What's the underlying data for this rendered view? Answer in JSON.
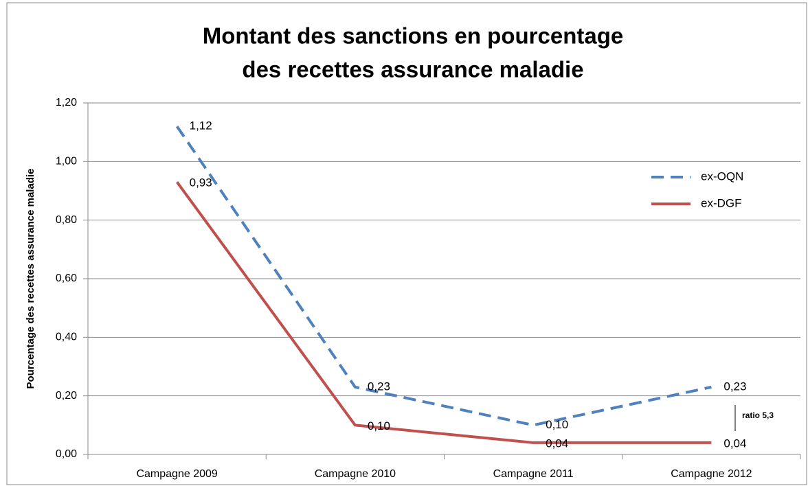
{
  "chart_data": {
    "type": "line",
    "title": [
      "Montant des sanctions en pourcentage",
      "des recettes assurance maladie"
    ],
    "y_label": "Pourcentage des recettes assurance maladie",
    "categories": [
      "Campagne 2009",
      "Campagne 2010",
      "Campagne 2011",
      "Campagne 2012"
    ],
    "series": [
      {
        "name": "ex-OQN",
        "color": "#4f81bd",
        "dashed": true,
        "values": [
          1.12,
          0.23,
          0.1,
          0.23
        ],
        "value_labels": [
          "1,12",
          "0,23",
          "0,10",
          "0,23"
        ]
      },
      {
        "name": "ex-DGF",
        "color": "#c0504d",
        "dashed": false,
        "values": [
          0.93,
          0.1,
          0.04,
          0.04
        ],
        "value_labels": [
          "0,93",
          "0,10",
          "0,04",
          "0,04"
        ]
      }
    ],
    "ylim": [
      0,
      1.2
    ],
    "yticks": [
      {
        "value": 0,
        "label": "0,00"
      },
      {
        "value": 0.2,
        "label": "0,20"
      },
      {
        "value": 0.4,
        "label": "0,40"
      },
      {
        "value": 0.6,
        "label": "0,60"
      },
      {
        "value": 0.8,
        "label": "0,80"
      },
      {
        "value": 1,
        "label": "1,00"
      },
      {
        "value": 1.2,
        "label": "1,20"
      }
    ],
    "grid": true,
    "legend": "right",
    "annotation": "ratio 5,3"
  }
}
